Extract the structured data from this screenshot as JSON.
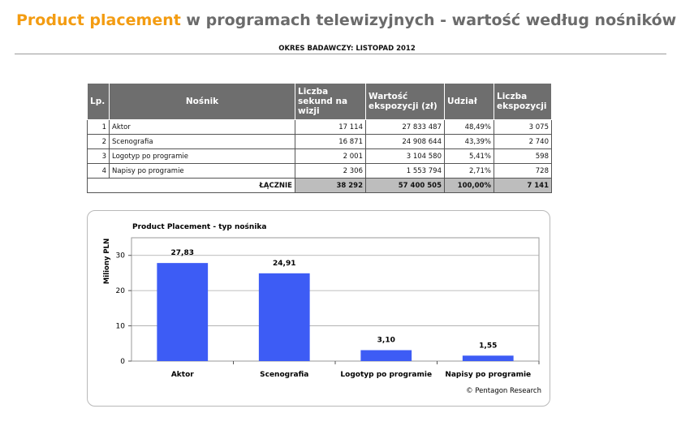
{
  "header": {
    "title_accent": "Product placement",
    "title_rest": " w programach telewizyjnych - wartość według nośników",
    "period": "OKRES BADAWCZY: LISTOPAD 2012"
  },
  "table": {
    "columns": [
      "Lp.",
      "Nośnik",
      "Liczba sekund na wizji",
      "Wartość ekspozycji (zł)",
      "Udział",
      "Liczba ekspozycji"
    ],
    "rows": [
      [
        "1",
        "Aktor",
        "17 114",
        "27 833 487",
        "48,49%",
        "3 075"
      ],
      [
        "2",
        "Scenografia",
        "16 871",
        "24 908 644",
        "43,39%",
        "2 740"
      ],
      [
        "3",
        "Logotyp po programie",
        "2 001",
        "3 104 580",
        "5,41%",
        "598"
      ],
      [
        "4",
        "Napisy po programie",
        "2 306",
        "1 553 794",
        "2,71%",
        "728"
      ]
    ],
    "total": {
      "label": "ŁĄCZNIE",
      "values": [
        "38 292",
        "57 400 505",
        "100,00%",
        "7 141"
      ]
    }
  },
  "chart_data": {
    "type": "bar",
    "title": "Product Placement - typ nośnika",
    "ylabel": "Miliony PLN",
    "xlabel": "",
    "categories": [
      "Aktor",
      "Scenografia",
      "Logotyp po programie",
      "Napisy po programie"
    ],
    "values": [
      27.83,
      24.91,
      3.1,
      1.55
    ],
    "value_labels": [
      "27,83",
      "24,91",
      "3,10",
      "1,55"
    ],
    "ylim": [
      0,
      35
    ],
    "yticks": [
      0,
      10,
      20,
      30
    ],
    "grid": true,
    "bar_color": "#3d5cf5",
    "source": "© Pentagon Research"
  }
}
